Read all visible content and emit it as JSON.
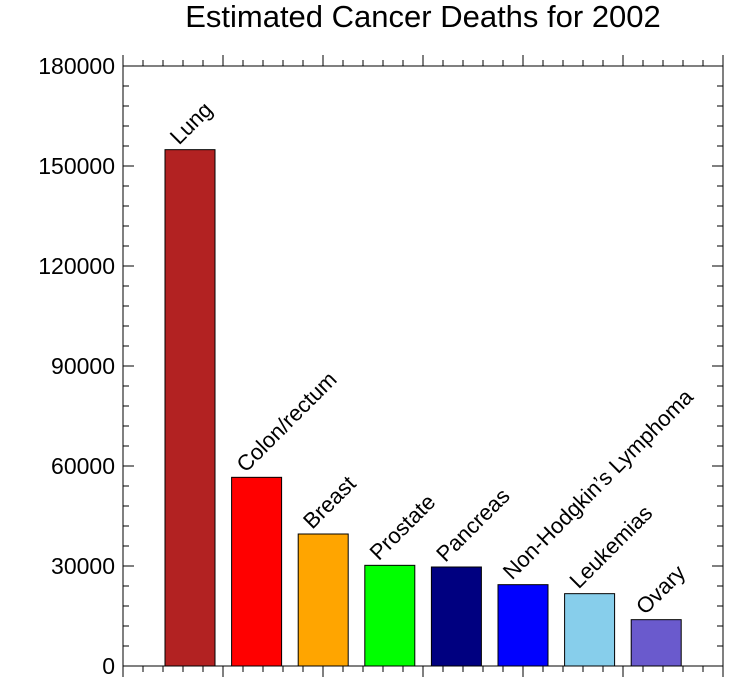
{
  "chart_data": {
    "type": "bar",
    "title": "Estimated Cancer Deaths for 2002",
    "xlabel": "",
    "ylabel": "",
    "ylim": [
      0,
      180000
    ],
    "yticks": [
      "0",
      "30000",
      "60000",
      "90000",
      "120000",
      "150000",
      "180000"
    ],
    "categories": [
      "Lung",
      "Colon/rectum",
      "Breast",
      "Prostate",
      "Pancreas",
      "Non-Hodgkin’s Lymphoma",
      "Leukemias",
      "Ovary"
    ],
    "values": [
      154900,
      56600,
      39600,
      30200,
      29700,
      24400,
      21700,
      13900
    ],
    "colors": [
      "#B22222",
      "#FF0000",
      "#FFA500",
      "#00FF00",
      "#000080",
      "#0000FF",
      "#87CEEB",
      "#6A5ACD"
    ]
  }
}
